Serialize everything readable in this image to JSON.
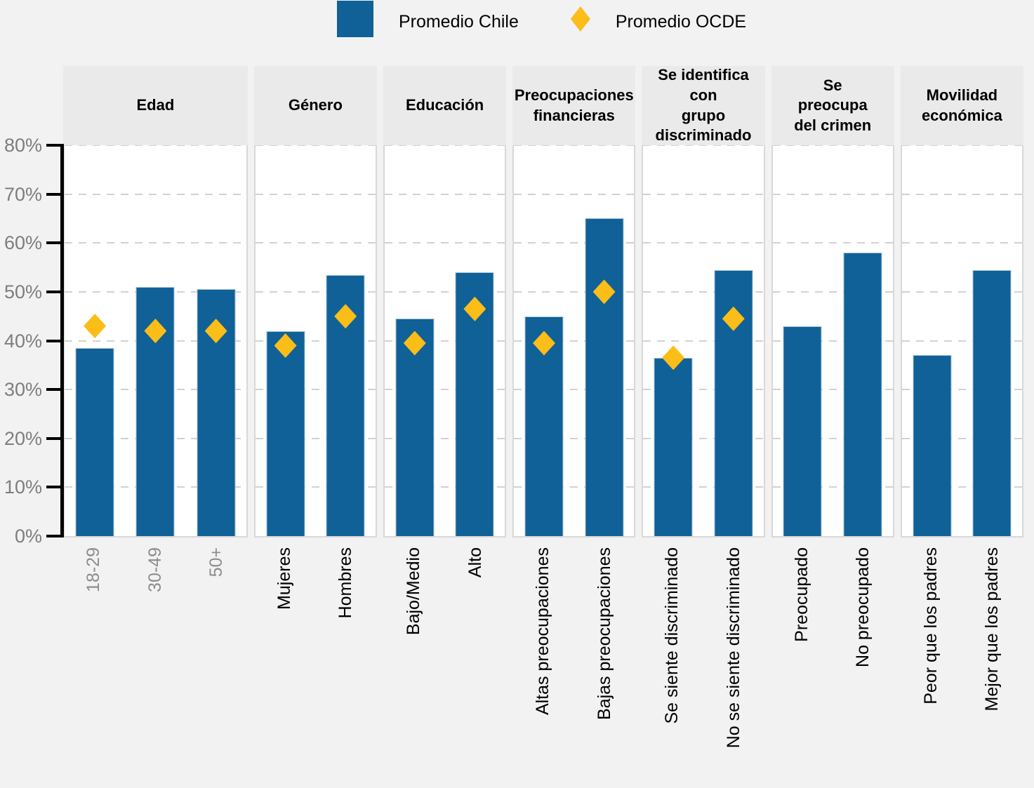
{
  "colors": {
    "bar_chile": "#0F6197",
    "diamond_ocde": "#FBBD17",
    "background": "#F2F2F2",
    "panel_header_bg": "#EAEAEA",
    "plot_border": "#D8D8D8",
    "gridline": "#D2D2D2",
    "axis": "#000000",
    "tick_label": "#7D7D7D",
    "category_label": "#000000",
    "muted_category_label": "#8C8C8C"
  },
  "chart_data": {
    "type": "bar",
    "title": "",
    "xlabel": "",
    "ylabel": "",
    "unit": "%",
    "ylim": [
      0,
      80
    ],
    "y_tick_labels": [
      "0%",
      "10%",
      "20%",
      "30%",
      "40%",
      "50%",
      "60%",
      "70%",
      "80%"
    ],
    "grid": "horizontal-dashed",
    "legend_position": "top-center",
    "legend": {
      "chile_label": "Promedio Chile",
      "ocde_label": "Promedio OCDE"
    },
    "series_meta": {
      "bars": "Promedio Chile",
      "diamonds": "Promedio OCDE"
    },
    "groups": [
      {
        "id": "edad",
        "title": "Edad",
        "muted_labels": true,
        "categories": [
          {
            "label": "18-29",
            "chile": 38.5,
            "ocde": 43
          },
          {
            "label": "30-49",
            "chile": 51,
            "ocde": 42
          },
          {
            "label": "50+",
            "chile": 50.5,
            "ocde": 42
          }
        ]
      },
      {
        "id": "genero",
        "title": "Género",
        "categories": [
          {
            "label": "Mujeres",
            "chile": 42,
            "ocde": 39
          },
          {
            "label": "Hombres",
            "chile": 53.5,
            "ocde": 45
          }
        ]
      },
      {
        "id": "educacion",
        "title": "Educación",
        "categories": [
          {
            "label": "Bajo/Medio",
            "chile": 44.5,
            "ocde": 39.5
          },
          {
            "label": "Alto",
            "chile": 54,
            "ocde": 46.5
          }
        ]
      },
      {
        "id": "preocupaciones-financieras",
        "title": "Preocupaciones\nfinancieras",
        "categories": [
          {
            "label": "Altas preocupaciones",
            "chile": 45,
            "ocde": 39.5
          },
          {
            "label": "Bajas preocupaciones",
            "chile": 65,
            "ocde": 50
          }
        ]
      },
      {
        "id": "grupo-discriminado",
        "title": "Se identifica con\ngrupo\ndiscriminado",
        "categories": [
          {
            "label": "Se siente discriminado",
            "chile": 36.5,
            "ocde": 36.5
          },
          {
            "label": "No se siente discriminado",
            "chile": 54.5,
            "ocde": 44.5
          }
        ]
      },
      {
        "id": "crimen",
        "title": "Se\npreocupa\ndel crimen",
        "categories": [
          {
            "label": "Preocupado",
            "chile": 43,
            "ocde": null
          },
          {
            "label": "No preocupado",
            "chile": 58,
            "ocde": null
          }
        ]
      },
      {
        "id": "movilidad",
        "title": "Movilidad\neconómica",
        "categories": [
          {
            "label": "Peor que los padres",
            "chile": 37,
            "ocde": null
          },
          {
            "label": "Mejor que los padres",
            "chile": 54.5,
            "ocde": null
          }
        ]
      }
    ]
  }
}
